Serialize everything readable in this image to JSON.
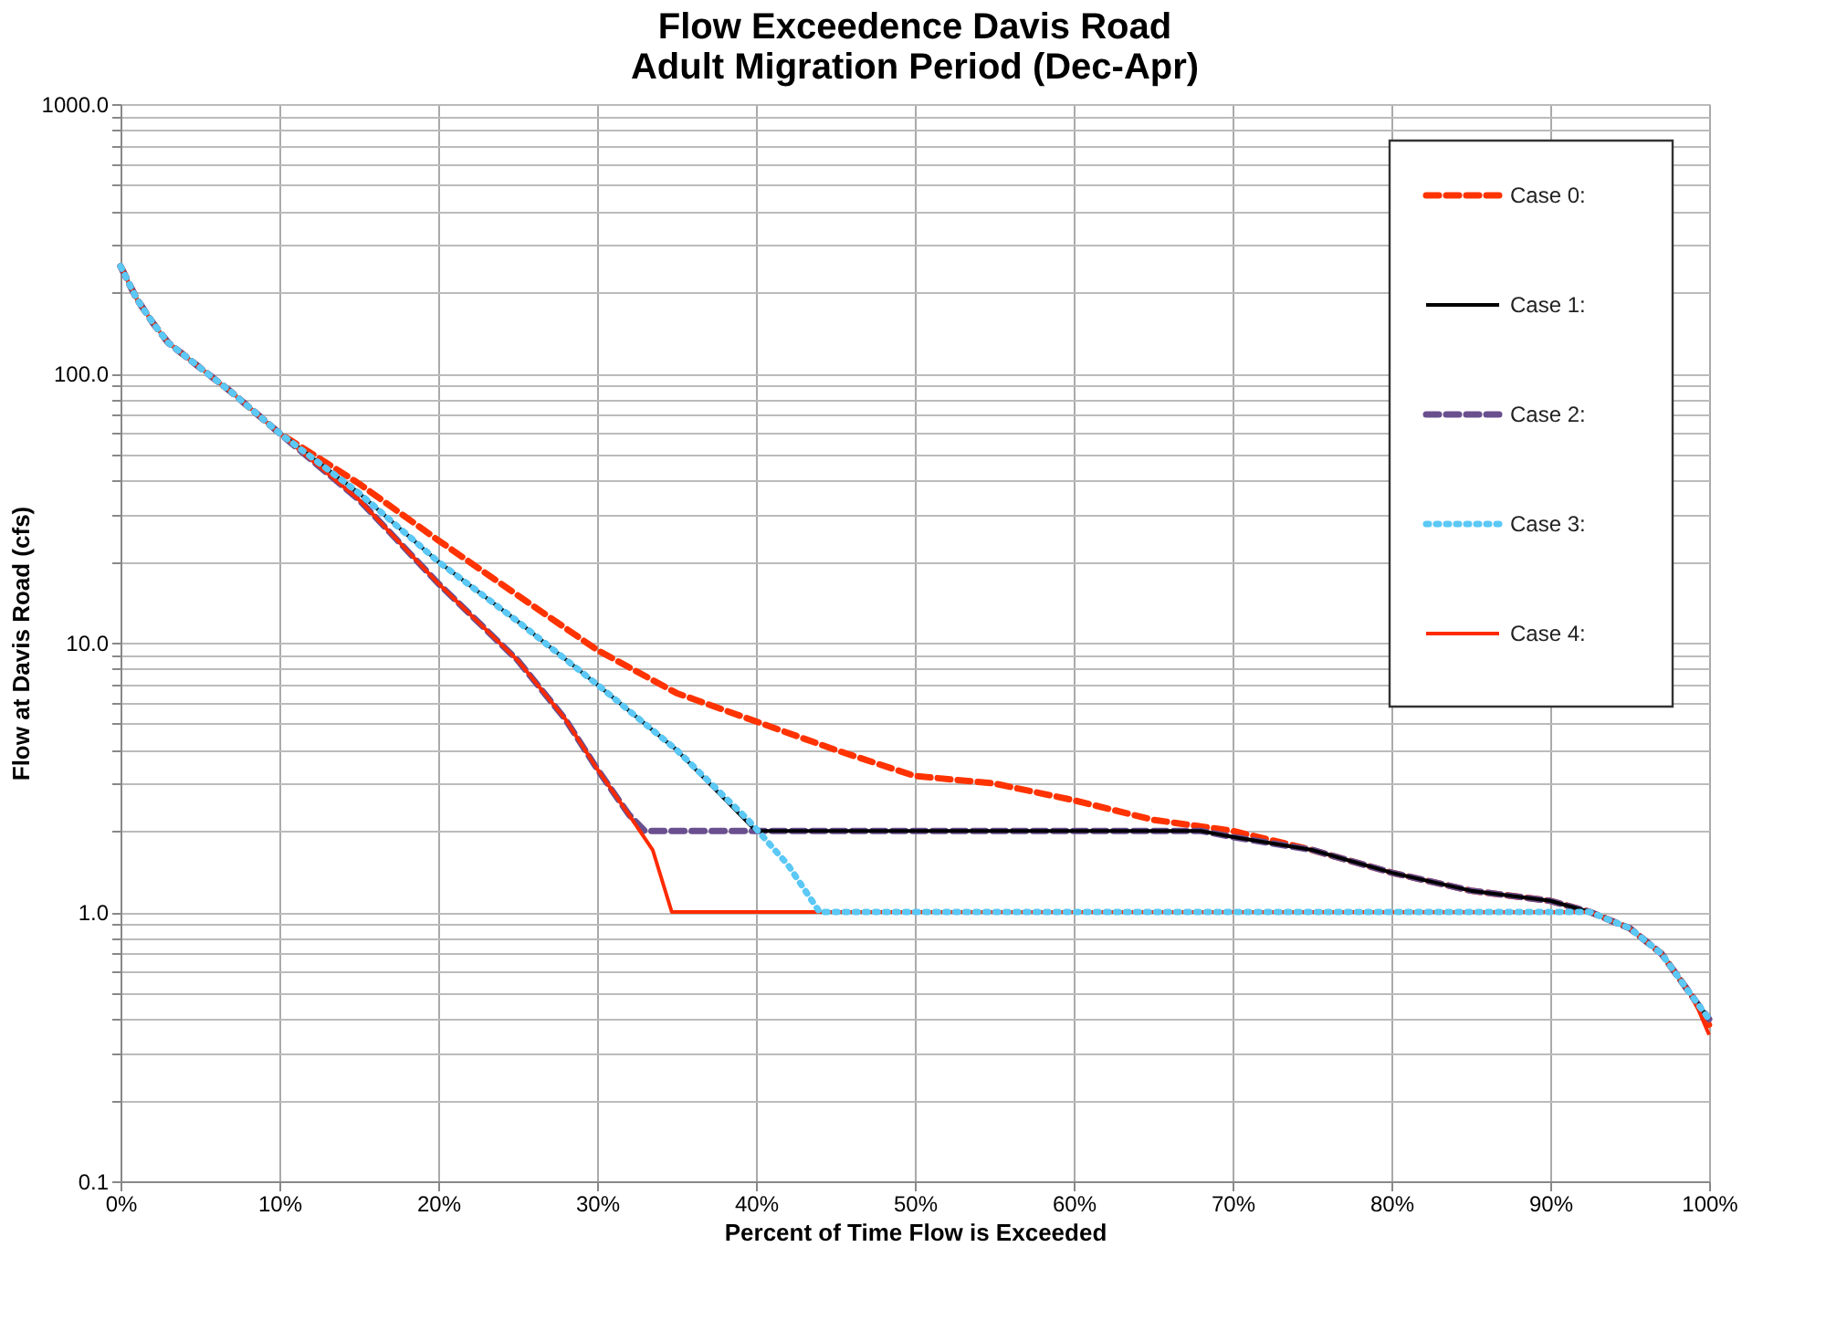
{
  "chart_data": {
    "type": "line",
    "title": "Flow Exceedence Davis Road\nAdult Migration Period (Dec-Apr)",
    "xlabel": "Percent of Time Flow is Exceeded",
    "ylabel": "Flow at Davis Road (cfs)",
    "log": "y",
    "grid": true,
    "legend": "top right",
    "marker": "none",
    "xlim": [
      0,
      100
    ],
    "ylim": [
      0.1,
      1000
    ],
    "xticks": [
      {
        "value": 0,
        "label": "0%"
      },
      {
        "value": 10,
        "label": "10%"
      },
      {
        "value": 20,
        "label": "20%"
      },
      {
        "value": 30,
        "label": "30%"
      },
      {
        "value": 40,
        "label": "40%"
      },
      {
        "value": 50,
        "label": "50%"
      },
      {
        "value": 60,
        "label": "60%"
      },
      {
        "value": 70,
        "label": "70%"
      },
      {
        "value": 80,
        "label": "80%"
      },
      {
        "value": 90,
        "label": "90%"
      },
      {
        "value": 100,
        "label": "100%"
      }
    ],
    "yticks": [
      {
        "value": 0.1,
        "label": "0.1"
      },
      {
        "value": 0.2,
        "label": null
      },
      {
        "value": 0.3,
        "label": null
      },
      {
        "value": 0.4,
        "label": null
      },
      {
        "value": 0.5,
        "label": null
      },
      {
        "value": 0.6,
        "label": null
      },
      {
        "value": 0.7,
        "label": null
      },
      {
        "value": 0.8,
        "label": null
      },
      {
        "value": 0.9,
        "label": null
      },
      {
        "value": 1,
        "label": "1.0"
      },
      {
        "value": 2,
        "label": null
      },
      {
        "value": 3,
        "label": null
      },
      {
        "value": 4,
        "label": null
      },
      {
        "value": 5,
        "label": null
      },
      {
        "value": 6,
        "label": null
      },
      {
        "value": 7,
        "label": null
      },
      {
        "value": 8,
        "label": null
      },
      {
        "value": 9,
        "label": null
      },
      {
        "value": 10,
        "label": "10.0"
      },
      {
        "value": 20,
        "label": null
      },
      {
        "value": 30,
        "label": null
      },
      {
        "value": 40,
        "label": null
      },
      {
        "value": 50,
        "label": null
      },
      {
        "value": 60,
        "label": null
      },
      {
        "value": 70,
        "label": null
      },
      {
        "value": 80,
        "label": null
      },
      {
        "value": 90,
        "label": null
      },
      {
        "value": 100,
        "label": "100.0"
      },
      {
        "value": 200,
        "label": null
      },
      {
        "value": 300,
        "label": null
      },
      {
        "value": 400,
        "label": null
      },
      {
        "value": 500,
        "label": null
      },
      {
        "value": 600,
        "label": null
      },
      {
        "value": 700,
        "label": null
      },
      {
        "value": 800,
        "label": null
      },
      {
        "value": 900,
        "label": null
      },
      {
        "value": 1000,
        "label": "1000.0"
      }
    ],
    "series": [
      {
        "name": "Case 0:",
        "color": "#ff3300",
        "line_style": "dashed",
        "x": [
          0,
          1,
          2,
          3,
          5,
          7,
          10,
          15,
          20,
          25,
          30,
          35,
          40,
          45,
          50,
          55,
          60,
          65,
          70,
          75,
          80,
          85,
          90,
          92.5,
          95,
          97,
          99,
          100
        ],
        "values": [
          250,
          190,
          155,
          130,
          105,
          85,
          60,
          39,
          24,
          15,
          9.4,
          6.5,
          5.1,
          4.0,
          3.2,
          3.0,
          2.6,
          2.2,
          2.0,
          1.7,
          1.4,
          1.2,
          1.1,
          1.0,
          0.87,
          0.7,
          0.48,
          0.38
        ]
      },
      {
        "name": "Case 1:",
        "color": "#000000",
        "line_style": "solid",
        "x": [
          0,
          1,
          2,
          3,
          5,
          7,
          10,
          15,
          20,
          25,
          30,
          35,
          40,
          50,
          60,
          68,
          70,
          75,
          80,
          85,
          90,
          92.5,
          95,
          97,
          99,
          100
        ],
        "values": [
          250,
          190,
          155,
          130,
          105,
          85,
          60,
          36,
          20,
          12,
          7.0,
          4.0,
          2.0,
          2.0,
          2.0,
          2.0,
          1.9,
          1.7,
          1.4,
          1.2,
          1.1,
          1.0,
          0.87,
          0.7,
          0.48,
          0.4
        ]
      },
      {
        "name": "Case 2:",
        "color": "#6a4f8f",
        "line_style": "dashed",
        "x": [
          0,
          1,
          2,
          3,
          5,
          7,
          10,
          15,
          20,
          25,
          28,
          30,
          32,
          33,
          40,
          50,
          60,
          68,
          70,
          75,
          80,
          85,
          90,
          92.5,
          95,
          97,
          99,
          100
        ],
        "values": [
          250,
          190,
          155,
          130,
          105,
          85,
          60,
          34,
          16.6,
          8.6,
          5.2,
          3.4,
          2.3,
          2.0,
          2.0,
          2.0,
          2.0,
          2.0,
          1.9,
          1.7,
          1.4,
          1.2,
          1.1,
          1.0,
          0.87,
          0.7,
          0.48,
          0.4
        ]
      },
      {
        "name": "Case 3:",
        "color": "#5bc8f5",
        "line_style": "dotted",
        "x": [
          0,
          1,
          2,
          3,
          5,
          7,
          10,
          15,
          20,
          25,
          30,
          35,
          39.5,
          42,
          44,
          50,
          60,
          70,
          80,
          92.5,
          95,
          97,
          99,
          100
        ],
        "values": [
          250,
          190,
          155,
          130,
          105,
          85,
          60,
          36,
          20,
          12,
          7.0,
          4.0,
          2.2,
          1.5,
          1.0,
          1.0,
          1.0,
          1.0,
          1.0,
          1.0,
          0.87,
          0.7,
          0.48,
          0.4
        ]
      },
      {
        "name": "Case 4:",
        "color": "#ff2a00",
        "line_style": "solid",
        "x": [
          0,
          1,
          2,
          3,
          5,
          7,
          10,
          15,
          20,
          25,
          28,
          30,
          32,
          33.5,
          34.7,
          40,
          50,
          60,
          70,
          80,
          92.5,
          95,
          97,
          99,
          100
        ],
        "values": [
          250,
          190,
          155,
          130,
          105,
          85,
          60,
          34,
          16.6,
          8.6,
          5.2,
          3.4,
          2.3,
          1.7,
          1.0,
          1.0,
          1.0,
          1.0,
          1.0,
          1.0,
          1.0,
          0.87,
          0.7,
          0.48,
          0.35
        ]
      }
    ]
  }
}
